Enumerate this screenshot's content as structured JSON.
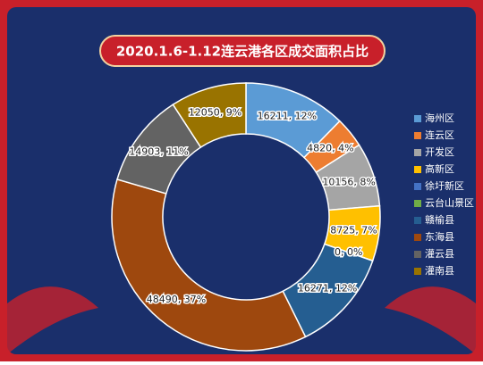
{
  "chart_data": {
    "type": "donut",
    "title": "2020.1.6-1.12连云港各区成交面积占比",
    "categories": [
      "海州区",
      "连云区",
      "开发区",
      "高新区",
      "徐圩新区",
      "云台山景区",
      "赣榆县",
      "东海县",
      "灌云县",
      "灌南县"
    ],
    "values": [
      16211,
      4820,
      10156,
      8725,
      0,
      0,
      16271,
      48490,
      14903,
      12050
    ],
    "value_labels": [
      "16211, 12%",
      "4820, 4%",
      "10156, 8%",
      "8725, 7%",
      "0, 0%",
      "0, 0%",
      "16271, 12%",
      "48490, 37%",
      "14903, 11%",
      "12050, 9%"
    ],
    "colors": [
      "#5b9bd5",
      "#ed7d31",
      "#a5a5a5",
      "#ffc000",
      "#4472c4",
      "#70ad47",
      "#255e91",
      "#9e480e",
      "#636363",
      "#997300"
    ],
    "legend": "right"
  }
}
